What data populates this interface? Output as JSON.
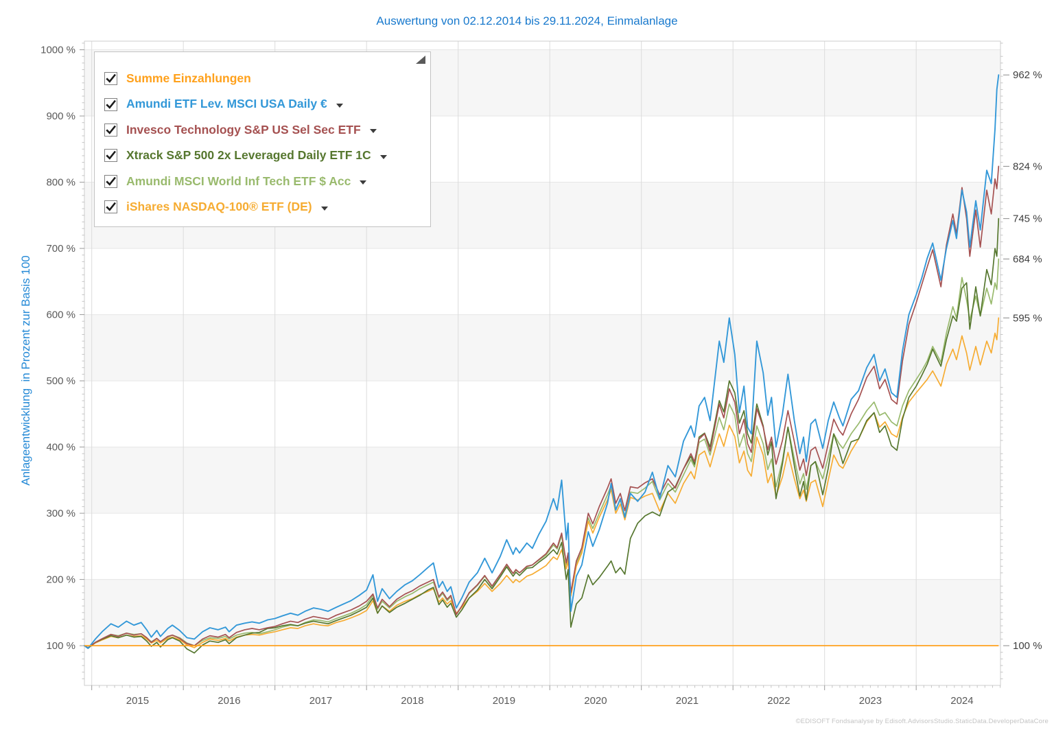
{
  "title": "Auswertung von 02.12.2014 bis 29.11.2024, Einmalanlage",
  "y_axis_title": "Anlageentwicklung  in Prozent zur Basis 100",
  "footer": "©EDISOFT Fondsanalyse by Edisoft.AdvisorsStudio.StaticData.DeveloperDataCore",
  "colors": {
    "title_blue": "#1879CD",
    "y_title_blue": "#2489D6",
    "tick_label": "#595959",
    "end_label": "#3E3E3E",
    "band": "#f6f6f6",
    "grid_h": "#e6e6e6",
    "grid_v": "#dcdcdc",
    "plot_border": "#cccccc",
    "tick_major": "#9a9a9a",
    "tick_minor": "#c4c4c4"
  },
  "legend": {
    "collapse_icon": "collapse-triangle",
    "checkbox_glyph": "checkmark"
  },
  "chart_data": {
    "type": "line",
    "x_unit": "decimal_year",
    "x_range": [
      2014.92,
      2024.92
    ],
    "y_range": [
      40,
      1013
    ],
    "y_ticks": [
      100,
      200,
      300,
      400,
      500,
      600,
      700,
      800,
      900,
      1000
    ],
    "y_tick_suffix": " %",
    "x_label_years": [
      2015,
      2016,
      2017,
      2018,
      2019,
      2020,
      2021,
      2022,
      2023,
      2024
    ],
    "gray_band_starts": [
      100,
      300,
      500,
      700,
      900
    ],
    "grid": true,
    "legend_position": "top-left",
    "x": [
      2014.92,
      2014.96,
      2015.04,
      2015.12,
      2015.21,
      2015.29,
      2015.38,
      2015.46,
      2015.54,
      2015.6,
      2015.65,
      2015.71,
      2015.75,
      2015.83,
      2015.88,
      2015.96,
      2016.04,
      2016.12,
      2016.21,
      2016.29,
      2016.38,
      2016.46,
      2016.5,
      2016.58,
      2016.67,
      2016.75,
      2016.83,
      2016.92,
      2017.0,
      2017.08,
      2017.17,
      2017.25,
      2017.33,
      2017.42,
      2017.5,
      2017.58,
      2017.67,
      2017.75,
      2017.83,
      2017.92,
      2018.0,
      2018.07,
      2018.12,
      2018.17,
      2018.25,
      2018.33,
      2018.42,
      2018.5,
      2018.58,
      2018.67,
      2018.73,
      2018.79,
      2018.83,
      2018.88,
      2018.92,
      2018.98,
      2019.04,
      2019.12,
      2019.21,
      2019.29,
      2019.37,
      2019.46,
      2019.53,
      2019.6,
      2019.63,
      2019.67,
      2019.75,
      2019.81,
      2019.88,
      2019.96,
      2020.04,
      2020.08,
      2020.13,
      2020.18,
      2020.2,
      2020.23,
      2020.29,
      2020.35,
      2020.42,
      2020.47,
      2020.54,
      2020.63,
      2020.67,
      2020.72,
      2020.77,
      2020.82,
      2020.88,
      2020.96,
      2021.04,
      2021.12,
      2021.2,
      2021.29,
      2021.37,
      2021.46,
      2021.54,
      2021.58,
      2021.63,
      2021.69,
      2021.75,
      2021.85,
      2021.9,
      2021.96,
      2022.02,
      2022.07,
      2022.12,
      2022.16,
      2022.2,
      2022.26,
      2022.33,
      2022.38,
      2022.42,
      2022.47,
      2022.54,
      2022.6,
      2022.67,
      2022.73,
      2022.77,
      2022.8,
      2022.85,
      2022.9,
      2022.98,
      2023.04,
      2023.1,
      2023.16,
      2023.2,
      2023.29,
      2023.37,
      2023.46,
      2023.54,
      2023.6,
      2023.66,
      2023.73,
      2023.79,
      2023.85,
      2023.92,
      2024.0,
      2024.06,
      2024.12,
      2024.18,
      2024.27,
      2024.33,
      2024.4,
      2024.44,
      2024.5,
      2024.55,
      2024.585,
      2024.65,
      2024.7,
      2024.77,
      2024.82,
      2024.86,
      2024.88,
      2024.9
    ],
    "series": [
      {
        "name": "Summe Einzahlungen",
        "color": "#FFA11C",
        "checked": true,
        "dropdown": false,
        "constant": 100,
        "end_label": "100 %"
      },
      {
        "name": "Amundi ETF Lev. MSCI USA Daily €",
        "color": "#3398D8",
        "checked": true,
        "dropdown": true,
        "end_label": "962 %",
        "values": [
          100,
          96,
          110,
          122,
          133,
          128,
          137,
          131,
          135,
          124,
          113,
          123,
          114,
          126,
          131,
          123,
          112,
          110,
          121,
          127,
          124,
          128,
          121,
          131,
          134,
          136,
          134,
          139,
          141,
          145,
          149,
          146,
          152,
          157,
          155,
          152,
          158,
          163,
          168,
          176,
          184,
          207,
          167,
          186,
          171,
          182,
          192,
          198,
          207,
          218,
          225,
          188,
          197,
          182,
          189,
          157,
          172,
          196,
          210,
          232,
          210,
          235,
          260,
          238,
          248,
          240,
          255,
          247,
          268,
          288,
          322,
          305,
          350,
          260,
          285,
          152,
          205,
          222,
          272,
          250,
          275,
          315,
          345,
          305,
          322,
          294,
          330,
          318,
          332,
          362,
          322,
          372,
          355,
          409,
          432,
          415,
          462,
          475,
          440,
          560,
          528,
          595,
          540,
          452,
          492,
          430,
          420,
          560,
          512,
          448,
          475,
          400,
          450,
          510,
          440,
          390,
          415,
          378,
          435,
          442,
          398,
          440,
          468,
          445,
          432,
          472,
          485,
          520,
          540,
          500,
          518,
          482,
          475,
          545,
          600,
          630,
          655,
          685,
          708,
          652,
          700,
          742,
          715,
          788,
          755,
          702,
          772,
          728,
          818,
          798,
          880,
          940,
          962
        ]
      },
      {
        "name": "Invesco Technology S&P US Sel Sec ETF",
        "color": "#A55151",
        "checked": true,
        "dropdown": true,
        "end_label": "824 %",
        "values": [
          100,
          97,
          105,
          111,
          117,
          114,
          119,
          116,
          118,
          112,
          105,
          111,
          106,
          114,
          116,
          111,
          103,
          100,
          110,
          115,
          113,
          117,
          112,
          120,
          124,
          126,
          124,
          127,
          129,
          133,
          137,
          135,
          140,
          144,
          142,
          140,
          146,
          150,
          154,
          160,
          167,
          178,
          157,
          170,
          159,
          170,
          178,
          183,
          190,
          196,
          200,
          174,
          181,
          170,
          176,
          147,
          160,
          180,
          192,
          206,
          190,
          208,
          223,
          209,
          215,
          210,
          220,
          222,
          230,
          239,
          255,
          248,
          270,
          225,
          240,
          180,
          228,
          248,
          300,
          284,
          310,
          338,
          352,
          315,
          330,
          304,
          340,
          338,
          346,
          352,
          328,
          352,
          338,
          367,
          390,
          378,
          412,
          420,
          394,
          465,
          444,
          488,
          468,
          420,
          442,
          405,
          392,
          458,
          430,
          396,
          415,
          374,
          410,
          455,
          408,
          365,
          382,
          357,
          395,
          400,
          368,
          405,
          442,
          425,
          418,
          450,
          472,
          505,
          522,
          488,
          502,
          472,
          465,
          530,
          585,
          618,
          645,
          672,
          698,
          642,
          705,
          752,
          722,
          792,
          745,
          688,
          758,
          702,
          788,
          752,
          805,
          790,
          824
        ]
      },
      {
        "name": "Xtrack S&P 500 2x Leveraged Daily ETF 1C",
        "color": "#56772F",
        "checked": true,
        "dropdown": true,
        "end_label": "745 %",
        "values": [
          100,
          96,
          105,
          110,
          115,
          112,
          116,
          113,
          114,
          107,
          99,
          105,
          98,
          109,
          112,
          107,
          95,
          89,
          101,
          107,
          105,
          109,
          103,
          112,
          116,
          119,
          120,
          126,
          127,
          130,
          132,
          130,
          134,
          137,
          135,
          133,
          138,
          142,
          146,
          152,
          158,
          172,
          149,
          160,
          150,
          158,
          164,
          170,
          176,
          184,
          188,
          162,
          169,
          158,
          164,
          143,
          154,
          172,
          184,
          200,
          186,
          204,
          219,
          205,
          211,
          206,
          217,
          218,
          226,
          234,
          245,
          238,
          256,
          200,
          215,
          128,
          163,
          172,
          207,
          192,
          203,
          220,
          228,
          210,
          218,
          208,
          262,
          285,
          296,
          302,
          296,
          332,
          340,
          367,
          386,
          374,
          415,
          421,
          400,
          470,
          453,
          500,
          482,
          436,
          455,
          420,
          406,
          465,
          432,
          388,
          408,
          322,
          375,
          430,
          372,
          326,
          348,
          320,
          372,
          378,
          328,
          368,
          420,
          395,
          375,
          408,
          412,
          440,
          452,
          422,
          432,
          402,
          395,
          442,
          475,
          492,
          508,
          525,
          548,
          522,
          562,
          598,
          590,
          640,
          648,
          578,
          642,
          598,
          668,
          645,
          700,
          688,
          745
        ]
      },
      {
        "name": "Amundi MSCI World Inf Tech ETF $ Acc",
        "color": "#99BA6D",
        "checked": true,
        "dropdown": true,
        "end_label": "684 %",
        "values": [
          100,
          97,
          105,
          111,
          117,
          115,
          119,
          117,
          118,
          112,
          106,
          111,
          106,
          113,
          116,
          112,
          104,
          100,
          108,
          112,
          111,
          114,
          110,
          116,
          119,
          120,
          118,
          121,
          124,
          128,
          131,
          130,
          135,
          139,
          138,
          136,
          141,
          145,
          149,
          155,
          162,
          176,
          155,
          167,
          157,
          167,
          174,
          179,
          186,
          192,
          196,
          172,
          179,
          168,
          174,
          147,
          159,
          179,
          191,
          205,
          189,
          207,
          221,
          209,
          214,
          210,
          219,
          222,
          229,
          237,
          252,
          246,
          266,
          222,
          236,
          176,
          224,
          243,
          293,
          277,
          300,
          328,
          342,
          306,
          320,
          296,
          332,
          330,
          338,
          348,
          320,
          345,
          332,
          358,
          381,
          370,
          407,
          412,
          388,
          445,
          426,
          465,
          448,
          400,
          420,
          390,
          378,
          432,
          405,
          366,
          382,
          340,
          380,
          430,
          382,
          344,
          360,
          336,
          372,
          378,
          352,
          385,
          420,
          405,
          398,
          420,
          435,
          455,
          468,
          448,
          452,
          438,
          432,
          462,
          485,
          502,
          515,
          530,
          552,
          528,
          572,
          612,
          595,
          656,
          622,
          592,
          628,
          598,
          640,
          616,
          648,
          638,
          684
        ]
      },
      {
        "name": "iShares NASDAQ-100® ETF (DE)",
        "color": "#F6AC32",
        "checked": true,
        "dropdown": true,
        "end_label": "595 %",
        "values": [
          100,
          97,
          104,
          109,
          114,
          112,
          116,
          114,
          115,
          110,
          104,
          108,
          104,
          111,
          113,
          109,
          101,
          97,
          105,
          110,
          108,
          111,
          107,
          113,
          116,
          117,
          116,
          119,
          121,
          124,
          127,
          126,
          130,
          133,
          131,
          130,
          135,
          138,
          142,
          147,
          153,
          168,
          149,
          160,
          152,
          161,
          167,
          171,
          177,
          182,
          186,
          166,
          172,
          163,
          168,
          149,
          158,
          172,
          182,
          194,
          182,
          194,
          206,
          195,
          200,
          196,
          205,
          208,
          214,
          221,
          234,
          230,
          245,
          216,
          228,
          175,
          220,
          240,
          288,
          270,
          294,
          320,
          336,
          300,
          314,
          290,
          324,
          320,
          326,
          330,
          303,
          330,
          315,
          345,
          363,
          352,
          388,
          394,
          370,
          420,
          401,
          433,
          416,
          376,
          394,
          365,
          356,
          415,
          388,
          346,
          360,
          326,
          355,
          392,
          352,
          322,
          335,
          318,
          346,
          350,
          310,
          350,
          388,
          372,
          368,
          394,
          412,
          438,
          452,
          430,
          438,
          420,
          415,
          445,
          468,
          482,
          492,
          502,
          515,
          492,
          525,
          548,
          532,
          568,
          542,
          516,
          552,
          524,
          560,
          542,
          572,
          562,
          595
        ]
      }
    ]
  }
}
